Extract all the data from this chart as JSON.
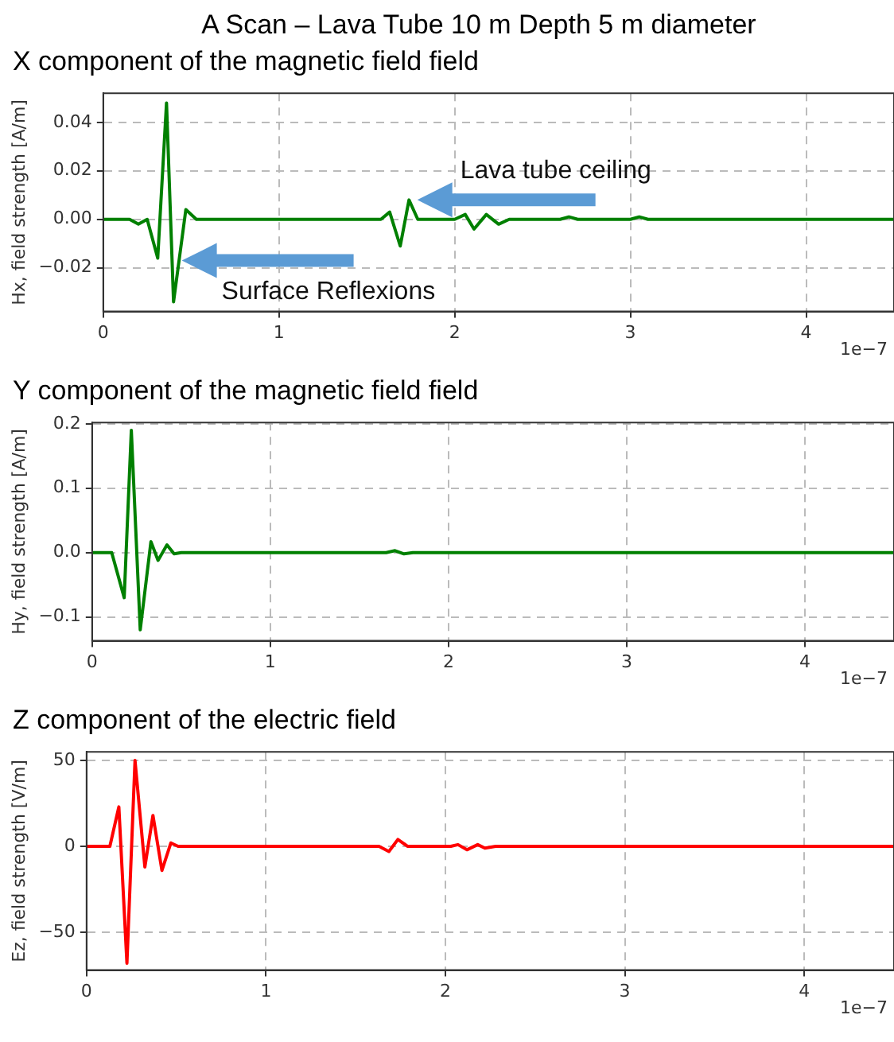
{
  "chart_data": [
    {
      "type": "line",
      "title": "A Scan – Lava Tube 10 m Depth 5 m diameter",
      "subtitle": "X component of the magnetic field field",
      "ylabel": "Hx, field strength [A/m]",
      "xlim": [
        0,
        4.5
      ],
      "xticks": [
        0,
        1,
        2,
        3,
        4
      ],
      "ylim": [
        -0.038,
        0.052
      ],
      "yticks": [
        {
          "value": -0.02,
          "label": "−0.02"
        },
        {
          "value": 0,
          "label": "0.00"
        },
        {
          "value": 0.02,
          "label": "0.02"
        },
        {
          "value": 0.04,
          "label": "0.04"
        }
      ],
      "grid": true,
      "legend": false,
      "marker": "none",
      "line_style": "solid",
      "series": [
        {
          "color": "#008000",
          "x": [
            0,
            0.15,
            0.2,
            0.25,
            0.31,
            0.36,
            0.4,
            0.47,
            0.53,
            1.58,
            1.63,
            1.69,
            1.74,
            1.79,
            2.0,
            2.06,
            2.11,
            2.18,
            2.25,
            2.31,
            2.6,
            2.65,
            2.7,
            3.0,
            3.05,
            3.1,
            4.5
          ],
          "values": [
            0,
            0,
            -0.002,
            0,
            -0.016,
            0.048,
            -0.034,
            0.004,
            0,
            0,
            0.003,
            -0.011,
            0.008,
            0,
            0,
            0.002,
            -0.004,
            0.002,
            -0.002,
            0,
            0,
            0.001,
            0,
            0,
            0.001,
            0,
            0
          ]
        }
      ],
      "annotations": [
        {
          "text": "Lava tube ceiling",
          "x": 1.76,
          "y": 0.008
        },
        {
          "text": "Surface Reflexions",
          "x": 0.42,
          "y": -0.017
        },
        "1e−7"
      ]
    },
    {
      "type": "line",
      "title": "Y component of the magnetic field field",
      "ylabel": "Hy, field strength [A/m]",
      "xlim": [
        0,
        4.5
      ],
      "xticks": [
        0,
        1,
        2,
        3,
        4
      ],
      "ylim": [
        -0.137,
        0.202
      ],
      "yticks": [
        {
          "value": -0.1,
          "label": "−0.1"
        },
        {
          "value": 0,
          "label": "0.0"
        },
        {
          "value": 0.1,
          "label": "0.1"
        },
        {
          "value": 0.2,
          "label": "0.2"
        }
      ],
      "grid": true,
      "legend": false,
      "marker": "none",
      "line_style": "solid",
      "series": [
        {
          "color": "#008000",
          "x": [
            0,
            0.11,
            0.18,
            0.22,
            0.27,
            0.33,
            0.37,
            0.42,
            0.46,
            0.5,
            1.65,
            1.7,
            1.75,
            1.8,
            4.5
          ],
          "values": [
            0,
            0,
            -0.07,
            0.19,
            -0.12,
            0.017,
            -0.012,
            0.012,
            -0.002,
            0,
            0,
            0.003,
            -0.002,
            0,
            0
          ]
        }
      ],
      "annotations": [
        "1e−7"
      ]
    },
    {
      "type": "line",
      "title": "Z component of the electric field",
      "ylabel": "Ez, field strength [V/m]",
      "xlim": [
        0,
        4.5
      ],
      "xticks": [
        0,
        1,
        2,
        3,
        4
      ],
      "ylim": [
        -72,
        55
      ],
      "yticks": [
        {
          "value": -50,
          "label": "−50"
        },
        0,
        50
      ],
      "grid": true,
      "legend": false,
      "marker": "none",
      "line_style": "solid",
      "series": [
        {
          "color": "#ff0000",
          "x": [
            0,
            0.13,
            0.18,
            0.225,
            0.27,
            0.325,
            0.37,
            0.42,
            0.47,
            0.51,
            1.63,
            1.685,
            1.735,
            1.79,
            2.03,
            2.07,
            2.12,
            2.18,
            2.22,
            2.28,
            4.5
          ],
          "values": [
            0,
            0,
            23,
            -68,
            50,
            -12,
            18,
            -14,
            2,
            0,
            0,
            -3,
            4,
            0,
            0,
            1,
            -2,
            1,
            -1,
            0,
            0
          ]
        }
      ],
      "annotations": [
        "1e−7"
      ]
    }
  ]
}
